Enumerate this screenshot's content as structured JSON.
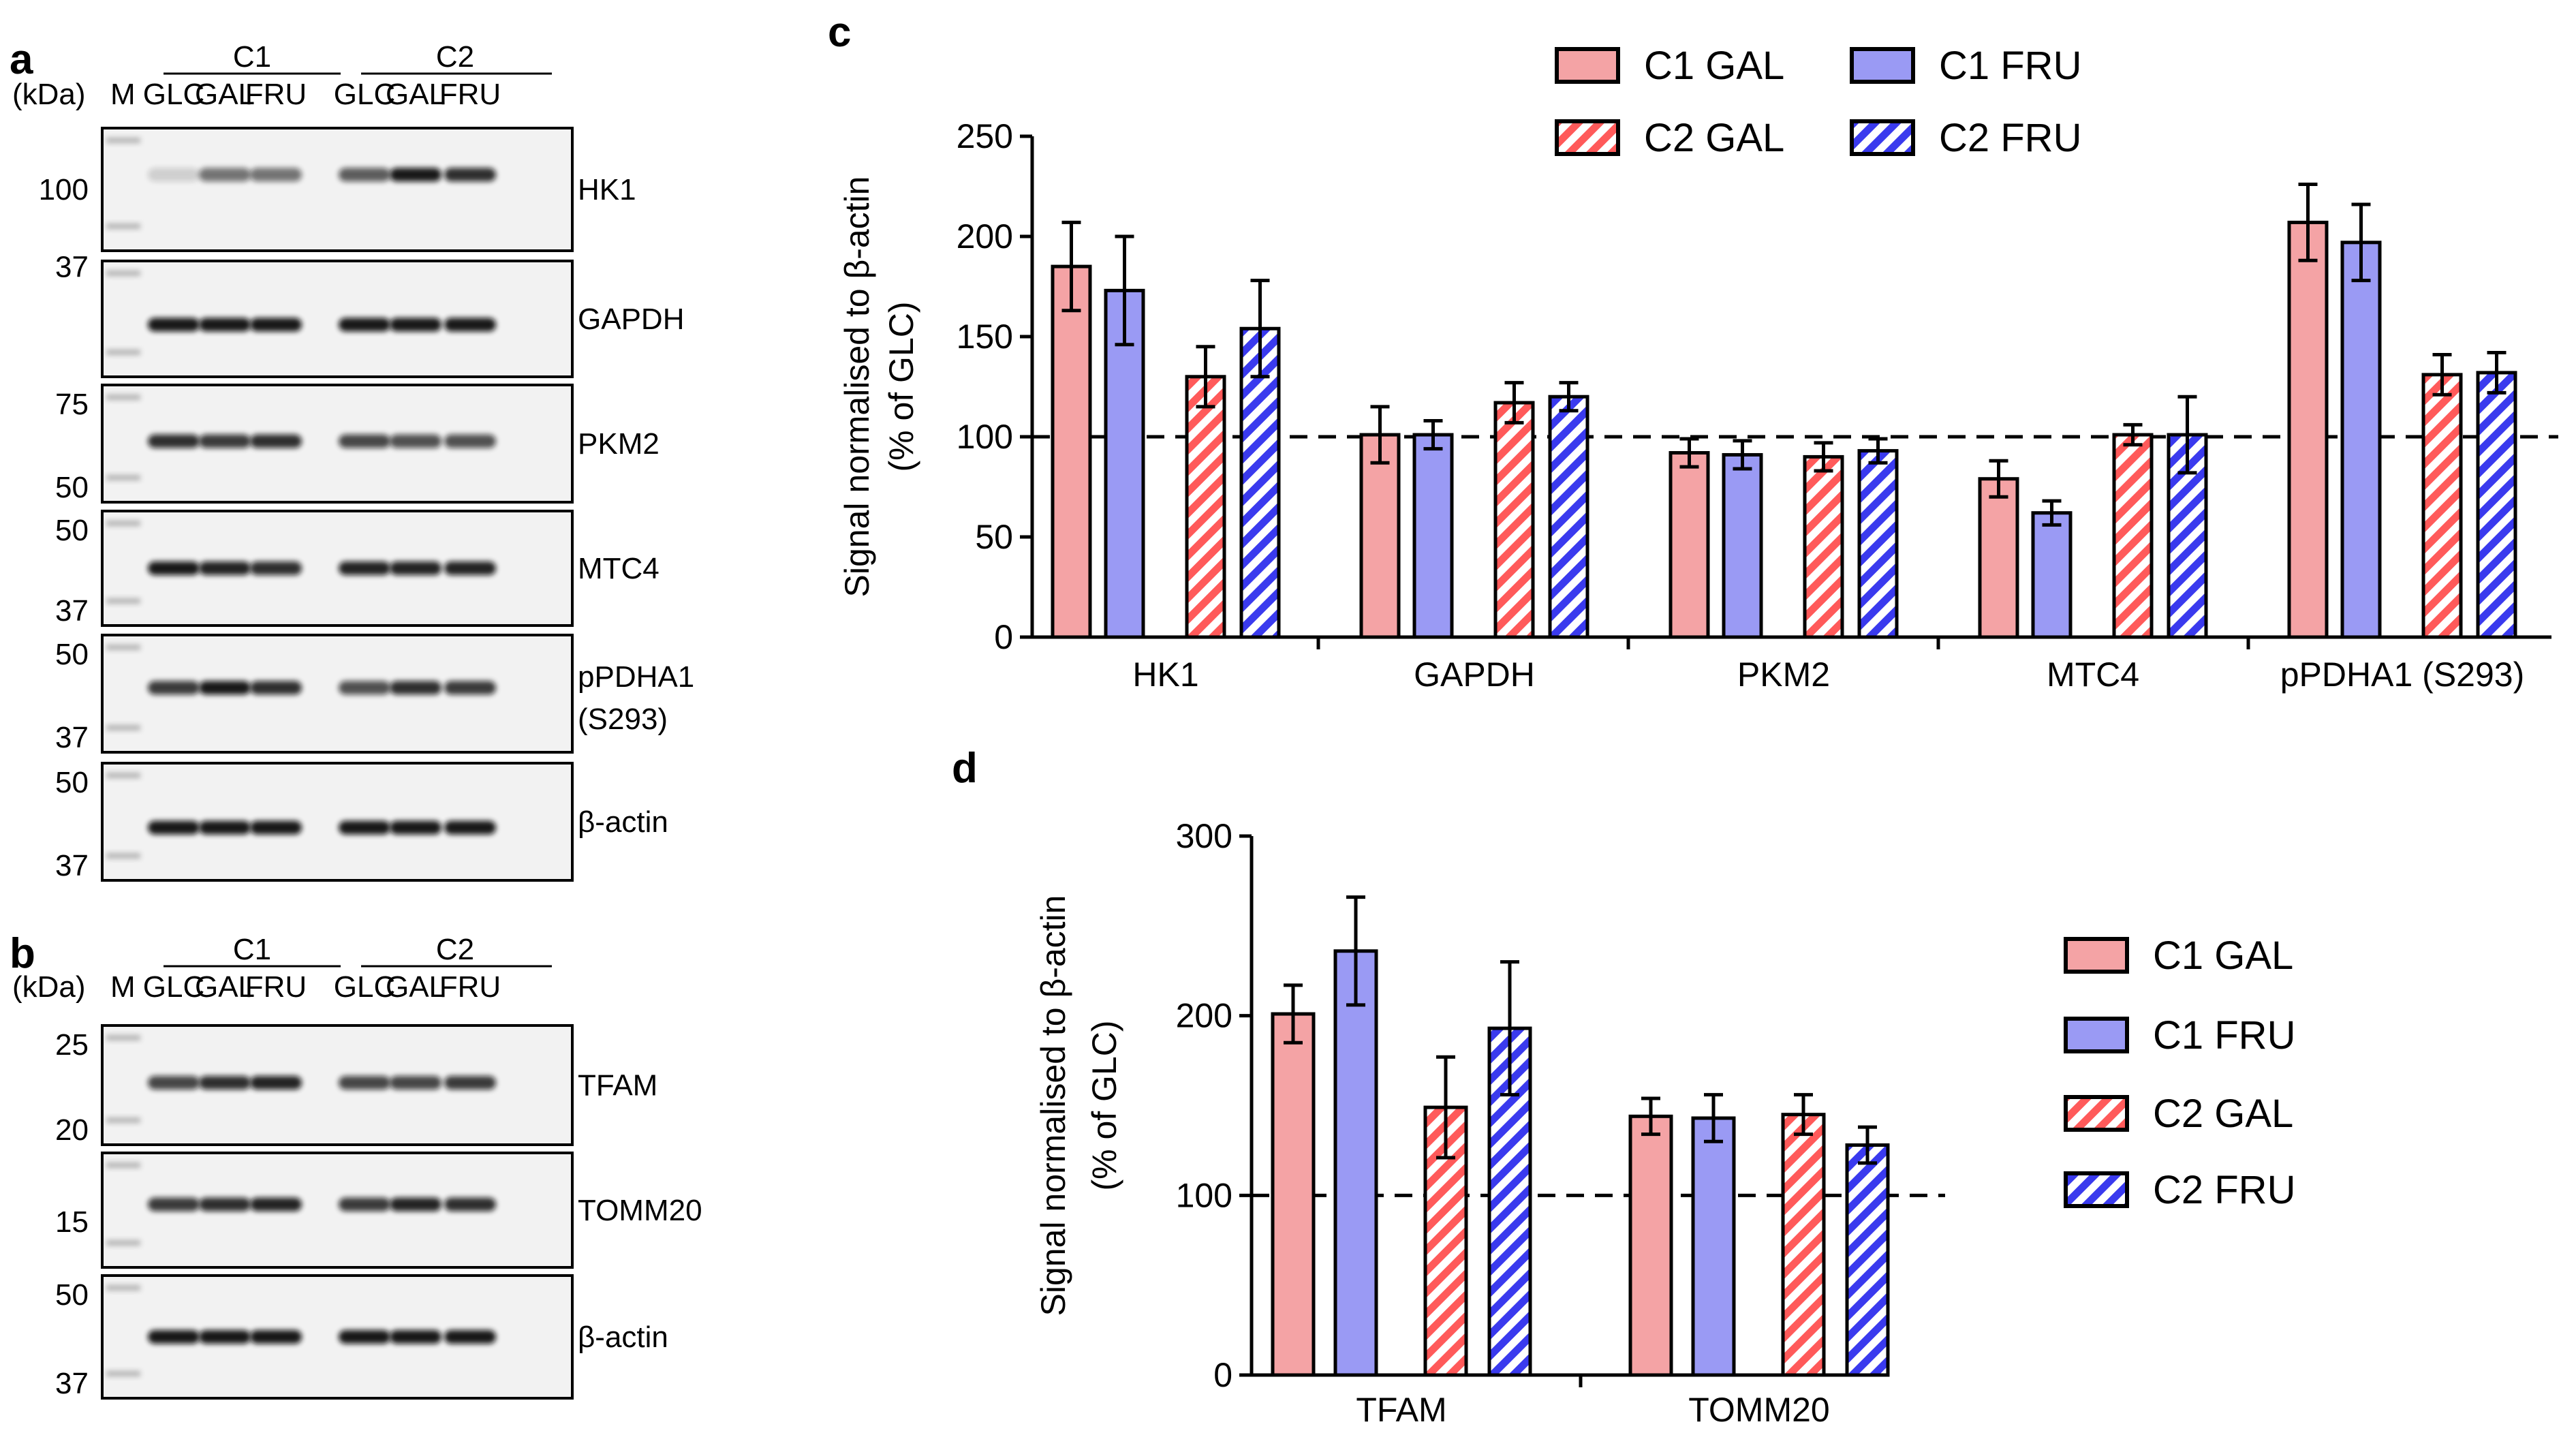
{
  "colors": {
    "gal": "#f4a3a5",
    "fru": "#9a9af4",
    "gal_stripe": "#ff5a5a",
    "fru_stripe": "#3a3aee",
    "stripe_bg": "#ffffff",
    "axis": "#000000",
    "band": "#111111",
    "blot_bg": "#f2f2f2"
  },
  "panels": {
    "a": {
      "letter": "a",
      "kda": "(kDa)",
      "marker": "M",
      "groups": [
        "C1",
        "C2"
      ],
      "lanes": [
        "GLC",
        "GAL",
        "FRU",
        "GLC",
        "GAL",
        "FRU"
      ],
      "blots": [
        {
          "protein": "HK1",
          "protein2": "",
          "mw": [
            "100"
          ],
          "bands": [
            0.15,
            0.55,
            0.55,
            0.65,
            0.95,
            0.85
          ],
          "shade": 0.15
        },
        {
          "protein": "GAPDH",
          "protein2": "",
          "mw": [
            "37"
          ],
          "bands": [
            0.95,
            0.95,
            0.95,
            0.95,
            0.95,
            0.95
          ],
          "shade": 0.0
        },
        {
          "protein": "PKM2",
          "protein2": "",
          "mw": [
            "75",
            "50"
          ],
          "bands": [
            0.85,
            0.8,
            0.85,
            0.75,
            0.7,
            0.7
          ],
          "shade": 0.0
        },
        {
          "protein": "MTC4",
          "protein2": "",
          "mw": [
            "50",
            "37"
          ],
          "bands": [
            0.95,
            0.9,
            0.85,
            0.9,
            0.9,
            0.9
          ],
          "shade": 0.0
        },
        {
          "protein": "pPDHA1",
          "protein2": "(S293)",
          "mw": [
            "50",
            "37"
          ],
          "bands": [
            0.8,
            0.95,
            0.85,
            0.7,
            0.85,
            0.8
          ],
          "shade": 0.0
        },
        {
          "protein": "β-actin",
          "protein2": "",
          "mw": [
            "50",
            "37"
          ],
          "bands": [
            0.95,
            0.95,
            0.95,
            0.95,
            0.95,
            0.95
          ],
          "shade": 0.0
        }
      ]
    },
    "b": {
      "letter": "b",
      "kda": "(kDa)",
      "marker": "M",
      "groups": [
        "C1",
        "C2"
      ],
      "lanes": [
        "GLC",
        "GAL",
        "FRU",
        "GLC",
        "GAL",
        "FRU"
      ],
      "blots": [
        {
          "protein": "TFAM",
          "protein2": "",
          "mw": [
            "25",
            "20"
          ],
          "bands": [
            0.75,
            0.85,
            0.9,
            0.75,
            0.75,
            0.8
          ],
          "shade": 0.0
        },
        {
          "protein": "TOMM20",
          "protein2": "",
          "mw": [
            "15"
          ],
          "bands": [
            0.8,
            0.85,
            0.9,
            0.8,
            0.9,
            0.85
          ],
          "shade": 0.0
        },
        {
          "protein": "β-actin",
          "protein2": "",
          "mw": [
            "50",
            "37"
          ],
          "bands": [
            0.95,
            0.95,
            0.95,
            0.95,
            0.95,
            0.95
          ],
          "shade": 0.0
        }
      ]
    },
    "c": {
      "letter": "c"
    },
    "d": {
      "letter": "d"
    }
  },
  "chart_data": [
    {
      "panel": "c",
      "type": "bar",
      "title": "",
      "xlabel": "",
      "ylabel": "Signal normalised to β-actin",
      "ylabel2": "(% of GLC)",
      "categories": [
        "HK1",
        "GAPDH",
        "PKM2",
        "MTC4",
        "pPDHA1 (S293)"
      ],
      "ylim": [
        0,
        250
      ],
      "yticks": [
        0,
        50,
        100,
        150,
        200,
        250
      ],
      "reference_line": 100,
      "legend_position": "top",
      "series": [
        {
          "name": "C1 GAL",
          "values": [
            185,
            101,
            92,
            79,
            207
          ],
          "errors": [
            22,
            14,
            7,
            9,
            19
          ],
          "style": "gal_solid"
        },
        {
          "name": "C1 FRU",
          "values": [
            173,
            101,
            91,
            62,
            197
          ],
          "errors": [
            27,
            7,
            7,
            6,
            19
          ],
          "style": "fru_solid"
        },
        {
          "name": "C2 GAL",
          "values": [
            130,
            117,
            90,
            101,
            131
          ],
          "errors": [
            15,
            10,
            7,
            5,
            10
          ],
          "style": "gal_hatch"
        },
        {
          "name": "C2 FRU",
          "values": [
            154,
            120,
            93,
            101,
            132
          ],
          "errors": [
            24,
            7,
            6,
            19,
            10
          ],
          "style": "fru_hatch"
        }
      ]
    },
    {
      "panel": "d",
      "type": "bar",
      "title": "",
      "xlabel": "",
      "ylabel": "Signal normalised to β-actin",
      "ylabel2": "(% of GLC)",
      "categories": [
        "TFAM",
        "TOMM20"
      ],
      "ylim": [
        0,
        300
      ],
      "yticks": [
        0,
        100,
        200,
        300
      ],
      "reference_line": 100,
      "legend_position": "right",
      "series": [
        {
          "name": "C1 GAL",
          "values": [
            201,
            144
          ],
          "errors": [
            16,
            10
          ],
          "style": "gal_solid"
        },
        {
          "name": "C1 FRU",
          "values": [
            236,
            143
          ],
          "errors": [
            30,
            13
          ],
          "style": "fru_solid"
        },
        {
          "name": "C2 GAL",
          "values": [
            149,
            145
          ],
          "errors": [
            28,
            11
          ],
          "style": "gal_hatch"
        },
        {
          "name": "C2 FRU",
          "values": [
            193,
            128
          ],
          "errors": [
            37,
            10
          ],
          "style": "fru_hatch"
        }
      ]
    }
  ]
}
